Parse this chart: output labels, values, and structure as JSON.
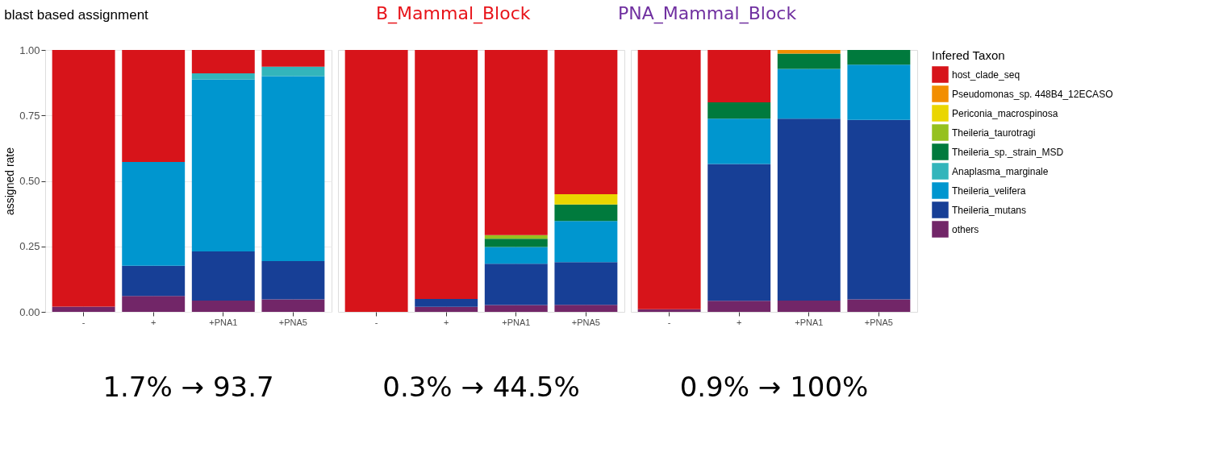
{
  "chart_data": [
    {
      "type": "bar",
      "stacked": true,
      "title": "blast based assignment",
      "ylabel": "assigned rate",
      "categories": [
        "-",
        "+",
        "+PNA1",
        "+PNA5"
      ],
      "ylim": [
        0,
        1
      ],
      "yticks": [
        {
          "value": 0,
          "label": "0.00"
        },
        {
          "value": 0.25,
          "label": "0.25"
        },
        {
          "value": 0.5,
          "label": "0.50"
        },
        {
          "value": 0.75,
          "label": "0.75"
        },
        {
          "value": 1,
          "label": "1.00"
        }
      ],
      "grid": true,
      "annotations": [
        "B_Mammal_Block",
        "PNA_Mammal_Block",
        "1.7%  →     93.7"
      ],
      "series": [
        {
          "color": "#722668",
          "values": [
            0.02,
            0.061,
            0.043,
            0.048
          ]
        },
        {
          "color": "#173f96",
          "values": [
            null,
            0.115,
            0.188,
            0.146
          ]
        },
        {
          "color": "#0096cf",
          "values": [
            null,
            0.396,
            0.656,
            0.706
          ]
        },
        {
          "color": "#33b5bb",
          "values": [
            null,
            null,
            0.024,
            0.036
          ]
        },
        {
          "color": "#d7141a",
          "values": [
            0.98,
            0.428,
            0.089,
            0.064
          ]
        }
      ]
    },
    {
      "type": "bar",
      "stacked": true,
      "categories": [
        "-",
        "+",
        "+PNA1",
        "+PNA5"
      ],
      "ylim": [
        0,
        1
      ],
      "tick_labels": "x",
      "grid": true,
      "annotations": [
        "0.3%        → 44.5%"
      ],
      "series": [
        {
          "color": "#722668",
          "values": [
            null,
            0.019,
            0.026,
            0.027
          ]
        },
        {
          "color": "#173f96",
          "values": [
            null,
            0.03,
            0.158,
            0.163
          ]
        },
        {
          "color": "#0096cf",
          "values": [
            null,
            null,
            0.064,
            0.157
          ]
        },
        {
          "color": "#007a3d",
          "values": [
            null,
            null,
            0.031,
            0.063
          ]
        },
        {
          "color": "#95c11f",
          "values": [
            null,
            null,
            0.014,
            null
          ]
        },
        {
          "color": "#ead600",
          "values": [
            null,
            null,
            null,
            0.039
          ]
        },
        {
          "color": "#d7141a",
          "values": [
            1.0,
            0.951,
            0.707,
            0.551
          ]
        }
      ]
    },
    {
      "type": "bar",
      "stacked": true,
      "categories": [
        "-",
        "+",
        "+PNA1",
        "+PNA5"
      ],
      "ylim": [
        0,
        1
      ],
      "tick_labels": "x",
      "grid": true,
      "legend": "right",
      "legend_title": "Infered Taxon",
      "annotations": [
        "0.9% →   100%"
      ],
      "series": [
        {
          "name": "others",
          "color": "#722668",
          "values": [
            0.01,
            0.042,
            0.043,
            0.048
          ]
        },
        {
          "name": "Theileria_mutans",
          "color": "#173f96",
          "values": [
            null,
            0.523,
            0.695,
            0.685
          ]
        },
        {
          "name": "Theileria_velifera",
          "color": "#0096cf",
          "values": [
            null,
            0.173,
            0.19,
            0.211
          ]
        },
        {
          "name": "Anaplasma_marginale",
          "color": "#33b5bb",
          "values": [
            null,
            null,
            null,
            null
          ]
        },
        {
          "name": "Theileria_sp._strain_MSD",
          "color": "#007a3d",
          "values": [
            null,
            0.062,
            0.058,
            0.056
          ]
        },
        {
          "name": "Theileria_taurotragi",
          "color": "#95c11f",
          "values": [
            null,
            null,
            null,
            null
          ]
        },
        {
          "name": "Periconia_macrospinosa",
          "color": "#ead600",
          "values": [
            null,
            null,
            null,
            null
          ]
        },
        {
          "name": "Pseudomonas_sp. 448B4_12ECASO",
          "color": "#f28e00",
          "values": [
            null,
            null,
            0.014,
            null
          ]
        },
        {
          "name": "host_clade_seq",
          "color": "#d7141a",
          "values": [
            0.99,
            0.2,
            null,
            null
          ]
        }
      ]
    }
  ]
}
